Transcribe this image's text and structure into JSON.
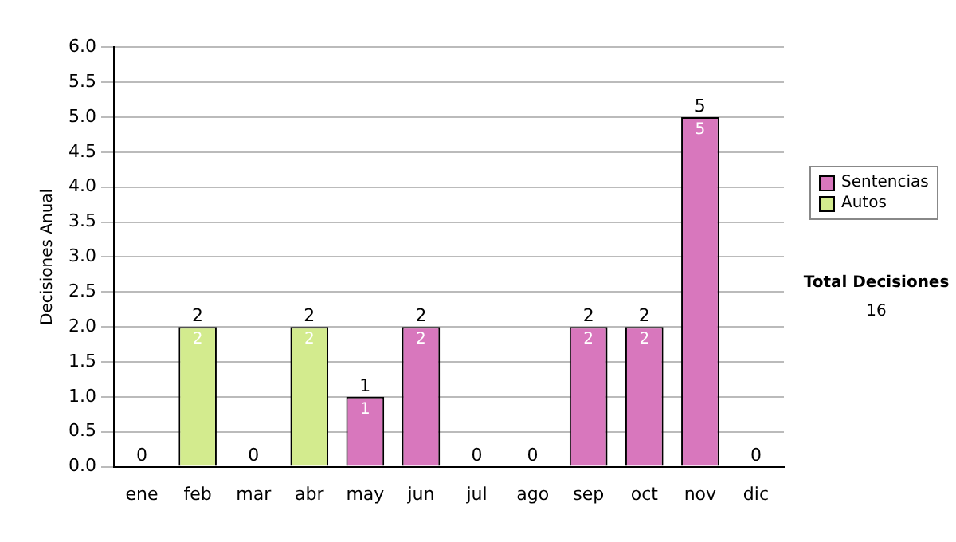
{
  "chart_data": {
    "type": "bar",
    "stacked": true,
    "ylabel": "Decisiones Anual",
    "categories": [
      "ene",
      "feb",
      "mar",
      "abr",
      "may",
      "jun",
      "jul",
      "ago",
      "sep",
      "oct",
      "nov",
      "dic"
    ],
    "series": [
      {
        "name": "Sentencias",
        "color": "#d877bd",
        "values": [
          null,
          null,
          null,
          null,
          1,
          2,
          null,
          null,
          2,
          2,
          5,
          null
        ]
      },
      {
        "name": "Autos",
        "color": "#d3eb8e",
        "values": [
          null,
          2,
          null,
          2,
          null,
          null,
          null,
          null,
          null,
          null,
          null,
          null
        ]
      }
    ],
    "ylim": [
      0,
      6
    ],
    "yticks": [
      {
        "value": 0,
        "label": "0.0"
      },
      {
        "value": 0.5,
        "label": "0.5"
      },
      {
        "value": 1,
        "label": "1.0"
      },
      {
        "value": 1.5,
        "label": "1.5"
      },
      {
        "value": 2,
        "label": "2.0"
      },
      {
        "value": 2.5,
        "label": "2.5"
      },
      {
        "value": 3,
        "label": "3.0"
      },
      {
        "value": 3.5,
        "label": "3.5"
      },
      {
        "value": 4,
        "label": "4.0"
      },
      {
        "value": 4.5,
        "label": "4.5"
      },
      {
        "value": 5,
        "label": "5.0"
      },
      {
        "value": 5.5,
        "label": "5.5"
      },
      {
        "value": 6,
        "label": "6.0"
      }
    ],
    "grid": "y",
    "legend": "right",
    "data_labels": true,
    "totals": [
      "0",
      "2",
      "0",
      "2",
      "1",
      "2",
      "0",
      "0",
      "2",
      "2",
      "5",
      "0"
    ],
    "annotations": [
      "Total Decisiones",
      "16"
    ]
  }
}
